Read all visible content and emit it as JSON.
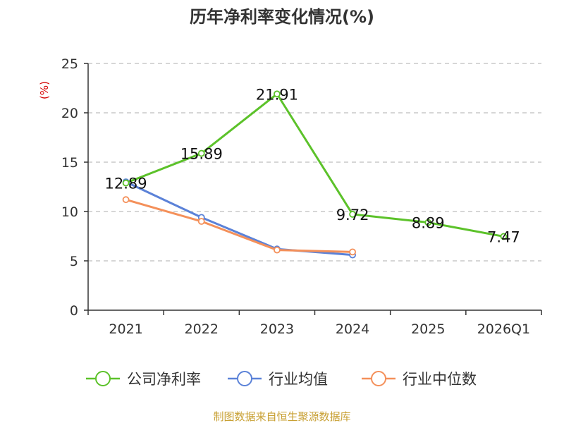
{
  "chart_data": {
    "type": "line",
    "title": "历年净利率变化情况(%)",
    "ylabel": "(%)",
    "xlabel": "",
    "ylim": [
      0,
      25
    ],
    "yticks": [
      0,
      5,
      10,
      15,
      20,
      25
    ],
    "categories": [
      "2021",
      "2022",
      "2023",
      "2024",
      "2025",
      "2026Q1"
    ],
    "grid": true,
    "legend_position": "bottom",
    "series": [
      {
        "name": "公司净利率",
        "color": "#5cc22a",
        "values": [
          12.89,
          15.89,
          21.91,
          9.72,
          8.89,
          7.47
        ],
        "labels": [
          "12.89",
          "15.89",
          "21.91",
          "9.72",
          "8.89",
          "7.47"
        ]
      },
      {
        "name": "行业均值",
        "color": "#5b82d8",
        "values": [
          13.0,
          9.4,
          6.2,
          5.6,
          null,
          null
        ]
      },
      {
        "name": "行业中位数",
        "color": "#f4905a",
        "values": [
          11.2,
          9.0,
          6.1,
          5.9,
          null,
          null
        ]
      }
    ],
    "source": "制图数据来自恒生聚源数据库"
  }
}
